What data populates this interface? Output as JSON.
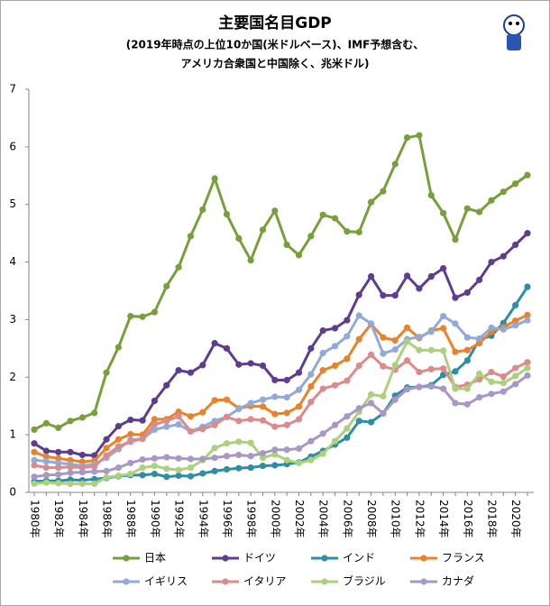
{
  "chart_data": {
    "type": "line",
    "title": "主要国名目GDP",
    "subtitle": [
      "(2019年時点の上位10か国(米ドルベース)、IMF予想含む、",
      "アメリカ合衆国と中国除く、兆米ドル)"
    ],
    "categories": [
      "1980年",
      null,
      "1982年",
      null,
      "1984年",
      null,
      "1986年",
      null,
      "1988年",
      null,
      "1990年",
      null,
      "1992年",
      null,
      "1994年",
      null,
      "1996年",
      null,
      "1998年",
      null,
      "2000年",
      null,
      "2002年",
      null,
      "2004年",
      null,
      "2006年",
      null,
      "2008年",
      null,
      "2010年",
      null,
      "2012年",
      null,
      "2014年",
      null,
      "2016年",
      null,
      "2018年",
      null,
      "2020年",
      null
    ],
    "ylim": [
      0,
      7
    ],
    "yticks": [
      0,
      1,
      2,
      3,
      4,
      5,
      6,
      7
    ],
    "grid": false,
    "series": [
      {
        "name": "日本",
        "color": "#77a03c",
        "values": [
          1.09,
          1.2,
          1.12,
          1.24,
          1.3,
          1.38,
          2.08,
          2.52,
          3.06,
          3.05,
          3.13,
          3.58,
          3.91,
          4.45,
          4.91,
          5.45,
          4.83,
          4.41,
          4.03,
          4.56,
          4.89,
          4.3,
          4.12,
          4.45,
          4.82,
          4.76,
          4.53,
          4.52,
          5.04,
          5.23,
          5.7,
          6.16,
          6.2,
          5.16,
          4.85,
          4.39,
          4.93,
          4.87,
          5.07,
          5.22,
          5.36,
          5.51
        ]
      },
      {
        "name": "ドイツ",
        "color": "#5c3d8f",
        "values": [
          0.85,
          0.72,
          0.7,
          0.7,
          0.65,
          0.64,
          0.92,
          1.15,
          1.26,
          1.25,
          1.59,
          1.86,
          2.12,
          2.08,
          2.21,
          2.59,
          2.5,
          2.22,
          2.24,
          2.2,
          1.95,
          1.95,
          2.08,
          2.5,
          2.81,
          2.85,
          2.99,
          3.43,
          3.75,
          3.42,
          3.42,
          3.76,
          3.54,
          3.75,
          3.89,
          3.38,
          3.47,
          3.69,
          4.0,
          4.1,
          4.3,
          4.5
        ]
      },
      {
        "name": "インド",
        "color": "#2e8ea6",
        "values": [
          0.19,
          0.2,
          0.2,
          0.22,
          0.21,
          0.23,
          0.25,
          0.28,
          0.3,
          0.3,
          0.32,
          0.27,
          0.29,
          0.28,
          0.33,
          0.37,
          0.4,
          0.42,
          0.43,
          0.46,
          0.47,
          0.49,
          0.52,
          0.62,
          0.72,
          0.83,
          0.95,
          1.24,
          1.22,
          1.37,
          1.68,
          1.82,
          1.83,
          1.86,
          2.04,
          2.1,
          2.29,
          2.65,
          2.72,
          2.94,
          3.25,
          3.57
        ]
      },
      {
        "name": "フランス",
        "color": "#e8832b",
        "values": [
          0.7,
          0.62,
          0.59,
          0.56,
          0.53,
          0.55,
          0.77,
          0.92,
          1.01,
          1.0,
          1.27,
          1.27,
          1.4,
          1.32,
          1.39,
          1.6,
          1.61,
          1.46,
          1.5,
          1.49,
          1.36,
          1.38,
          1.49,
          1.84,
          2.12,
          2.2,
          2.32,
          2.66,
          2.92,
          2.69,
          2.64,
          2.86,
          2.68,
          2.81,
          2.85,
          2.44,
          2.47,
          2.59,
          2.79,
          2.87,
          2.98,
          3.08
        ]
      },
      {
        "name": "イギリス",
        "color": "#92aad9",
        "values": [
          0.56,
          0.54,
          0.51,
          0.49,
          0.46,
          0.49,
          0.6,
          0.75,
          0.91,
          0.93,
          1.09,
          1.14,
          1.18,
          1.06,
          1.14,
          1.24,
          1.31,
          1.45,
          1.55,
          1.61,
          1.66,
          1.65,
          1.78,
          2.05,
          2.42,
          2.54,
          2.71,
          3.07,
          2.93,
          2.41,
          2.48,
          2.66,
          2.7,
          2.79,
          3.06,
          2.93,
          2.69,
          2.67,
          2.86,
          2.83,
          2.9,
          2.99
        ]
      },
      {
        "name": "イタリア",
        "color": "#da8b8b",
        "values": [
          0.47,
          0.43,
          0.43,
          0.44,
          0.43,
          0.45,
          0.64,
          0.8,
          0.88,
          0.93,
          1.18,
          1.24,
          1.32,
          1.06,
          1.1,
          1.17,
          1.31,
          1.24,
          1.27,
          1.25,
          1.14,
          1.17,
          1.27,
          1.57,
          1.8,
          1.86,
          1.94,
          2.2,
          2.39,
          2.19,
          2.13,
          2.29,
          2.09,
          2.14,
          2.15,
          1.83,
          1.87,
          1.96,
          2.09,
          2.01,
          2.16,
          2.26
        ]
      },
      {
        "name": "ブラジル",
        "color": "#abd17d",
        "values": [
          0.15,
          0.17,
          0.16,
          0.15,
          0.15,
          0.15,
          0.26,
          0.29,
          0.32,
          0.43,
          0.46,
          0.41,
          0.39,
          0.43,
          0.56,
          0.77,
          0.85,
          0.88,
          0.86,
          0.6,
          0.66,
          0.56,
          0.51,
          0.56,
          0.67,
          0.89,
          1.11,
          1.4,
          1.7,
          1.67,
          2.21,
          2.62,
          2.47,
          2.47,
          2.46,
          1.8,
          1.8,
          2.06,
          1.92,
          1.9,
          2.02,
          2.16
        ]
      },
      {
        "name": "カナダ",
        "color": "#a998c6",
        "values": [
          0.27,
          0.3,
          0.31,
          0.34,
          0.35,
          0.36,
          0.37,
          0.43,
          0.51,
          0.57,
          0.59,
          0.61,
          0.59,
          0.58,
          0.58,
          0.6,
          0.63,
          0.65,
          0.63,
          0.68,
          0.74,
          0.74,
          0.76,
          0.89,
          1.02,
          1.17,
          1.32,
          1.46,
          1.55,
          1.37,
          1.61,
          1.79,
          1.83,
          1.84,
          1.8,
          1.55,
          1.53,
          1.65,
          1.71,
          1.75,
          1.88,
          2.03
        ]
      }
    ]
  }
}
